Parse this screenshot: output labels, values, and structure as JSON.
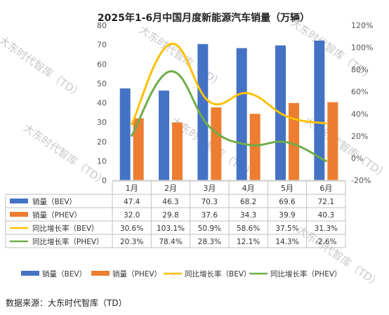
{
  "chart_data": {
    "type": "bar",
    "title": "2025年1-6月中国月度新能源汽车销量（万辆）",
    "categories": [
      "1月",
      "2月",
      "3月",
      "4月",
      "5月",
      "6月"
    ],
    "y_left": {
      "ylim": [
        0,
        80
      ],
      "ticks": [
        "0",
        "10",
        "20",
        "30",
        "40",
        "50",
        "60",
        "70",
        "80"
      ]
    },
    "y_right": {
      "ylim": [
        -20,
        120
      ],
      "ticks": [
        "-20%",
        "0%",
        "20%",
        "40%",
        "60%",
        "80%",
        "100%",
        "120%"
      ]
    },
    "series": [
      {
        "name": "销量（BEV）",
        "type": "bar",
        "axis": "left",
        "color": "#4472C4",
        "values": [
          47.4,
          46.3,
          70.3,
          68.2,
          69.6,
          72.1
        ],
        "labels": [
          "47.4",
          "46.3",
          "70.3",
          "68.2",
          "69.6",
          "72.1"
        ]
      },
      {
        "name": "销量（PHEV）",
        "type": "bar",
        "axis": "left",
        "color": "#ED7D31",
        "values": [
          32.0,
          29.8,
          37.6,
          34.3,
          39.9,
          40.3
        ],
        "labels": [
          "32.0",
          "29.8",
          "37.6",
          "34.3",
          "39.9",
          "40.3"
        ]
      },
      {
        "name": "同比增长率（BEV）",
        "type": "line",
        "axis": "right",
        "color": "#FFC000",
        "values": [
          30.6,
          103.1,
          50.9,
          58.6,
          37.5,
          31.3
        ],
        "labels": [
          "30.6%",
          "103.1%",
          "50.9%",
          "58.6%",
          "37.5%",
          "31.3%"
        ]
      },
      {
        "name": "同比增长率（PHEV）",
        "type": "line",
        "axis": "right",
        "color": "#70AD47",
        "values": [
          20.3,
          78.4,
          28.3,
          12.1,
          14.3,
          -2.6
        ],
        "labels": [
          "20.3%",
          "78.4%",
          "28.3%",
          "12.1%",
          "14.3%",
          "-2.6%"
        ]
      }
    ],
    "grid": false,
    "legend_placement": "bottom"
  },
  "watermark": "大东时代智库（TD）",
  "source_text": "数据来源：大东时代智库（TD）"
}
